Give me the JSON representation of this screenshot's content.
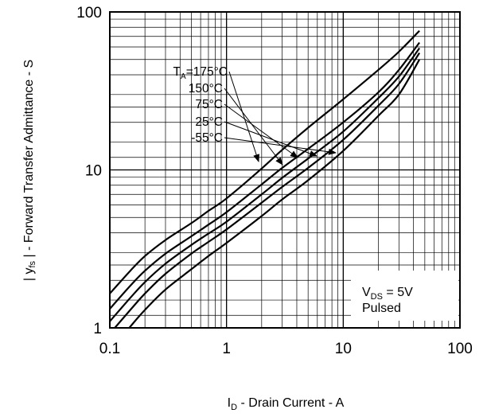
{
  "chart_data": {
    "type": "line",
    "title": "",
    "xlabel": {
      "main": "I",
      "sub": "D",
      "rest": " - Drain Current - A"
    },
    "ylabel": "| y ​fs​ | - Forward Transfer Admittance - S",
    "ylabel_parts": {
      "pre": "| y",
      "sub": "fs",
      "post": " | - Forward Transfer Admittance - S"
    },
    "x_scale": "log",
    "y_scale": "log",
    "xlim": [
      0.1,
      100
    ],
    "ylim": [
      1,
      100
    ],
    "x_ticks": [
      "0.1",
      "1",
      "10",
      "100"
    ],
    "y_ticks": [
      "1",
      "10",
      "100"
    ],
    "grid": true,
    "series": [
      {
        "name": "175°C",
        "x": [
          0.1,
          0.15,
          0.2,
          0.3,
          0.5,
          0.7,
          1,
          2,
          3,
          5,
          10,
          20,
          30,
          45
        ],
        "y": [
          1.65,
          2.3,
          2.85,
          3.6,
          4.6,
          5.5,
          6.6,
          10.2,
          13.4,
          18.5,
          28,
          43,
          56,
          76
        ]
      },
      {
        "name": "150°C",
        "x": [
          0.1,
          0.15,
          0.2,
          0.3,
          0.5,
          0.7,
          1,
          2,
          3,
          5,
          10,
          20,
          30,
          45
        ],
        "y": [
          1.32,
          1.85,
          2.3,
          2.95,
          3.8,
          4.5,
          5.4,
          8.1,
          10.3,
          13.6,
          20,
          31,
          43,
          64
        ]
      },
      {
        "name": "75°C",
        "x": [
          0.1,
          0.15,
          0.2,
          0.3,
          0.5,
          0.7,
          1,
          2,
          3,
          5,
          10,
          20,
          30,
          45
        ],
        "y": [
          1.1,
          1.55,
          1.95,
          2.55,
          3.35,
          3.95,
          4.7,
          7.0,
          8.9,
          11.8,
          17.5,
          28.5,
          39,
          59
        ]
      },
      {
        "name": "25°C",
        "x": [
          0.1,
          0.15,
          0.2,
          0.3,
          0.5,
          0.7,
          1,
          2,
          3,
          5,
          10,
          20,
          30,
          45
        ],
        "y": [
          0.92,
          1.3,
          1.65,
          2.2,
          2.95,
          3.5,
          4.2,
          6.2,
          7.8,
          10.3,
          15.5,
          25.5,
          35,
          55
        ]
      },
      {
        "name": "-55°C",
        "x": [
          0.13,
          0.15,
          0.2,
          0.3,
          0.5,
          0.7,
          1,
          2,
          3,
          5,
          10,
          20,
          30,
          45
        ],
        "y": [
          0.9,
          1.02,
          1.3,
          1.75,
          2.35,
          2.85,
          3.45,
          5.1,
          6.5,
          8.6,
          13.2,
          22,
          30,
          50
        ]
      }
    ],
    "annotations": [
      {
        "label_main": "T",
        "label_sub": "A",
        "label_rest": "=175°C",
        "target_series": "175°C"
      },
      {
        "label_main": "150°C",
        "label_sub": "",
        "label_rest": "",
        "target_series": "150°C"
      },
      {
        "label_main": "75°C",
        "label_sub": "",
        "label_rest": "",
        "target_series": "75°C"
      },
      {
        "label_main": "25°C",
        "label_sub": "",
        "label_rest": "",
        "target_series": "25°C"
      },
      {
        "label_main": "-55°C",
        "label_sub": "",
        "label_rest": "",
        "target_series": "-55°C"
      }
    ],
    "note": {
      "line1_main": "V",
      "line1_sub": "DS",
      "line1_rest": " = 5V",
      "line2": "Pulsed"
    }
  }
}
